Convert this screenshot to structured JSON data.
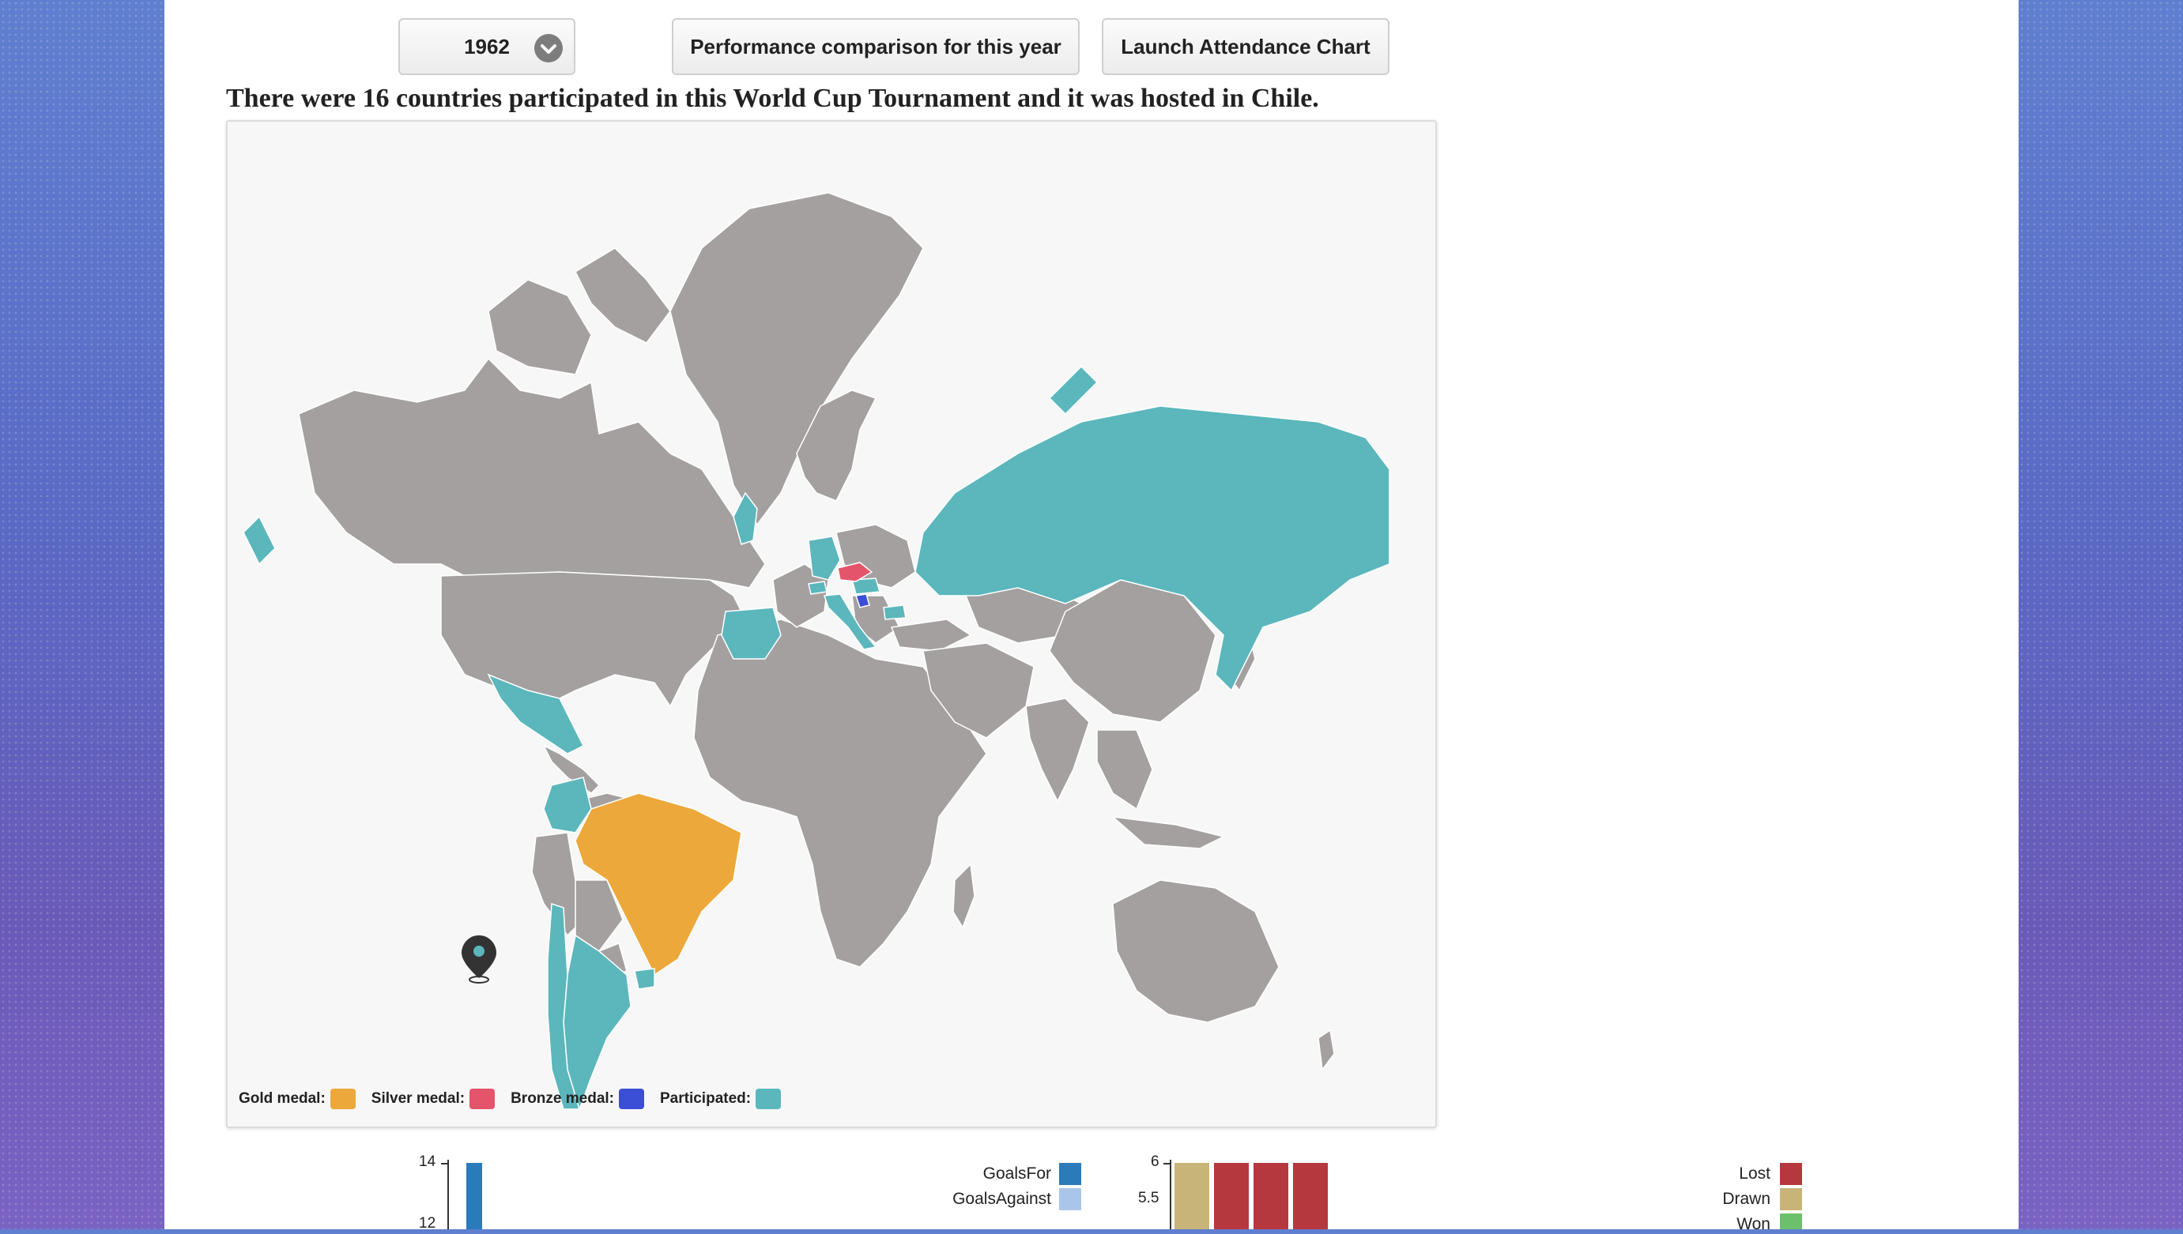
{
  "toolbar": {
    "year_value": "1962",
    "compare_label": "Performance comparison for this year",
    "attendance_label": "Launch Attendance Chart"
  },
  "headline": "There were 16 countries participated in this World Cup Tournament and it was hosted in Chile.",
  "map": {
    "colors": {
      "land": "#a3a09f",
      "gold": "#eca83a",
      "silver": "#e4546a",
      "bronze": "#3b4fd6",
      "participated": "#5bb7bc",
      "marker": "#333333"
    },
    "legend": [
      {
        "label": "Gold medal:",
        "color": "#eca83a"
      },
      {
        "label": "Silver medal:",
        "color": "#e4546a"
      },
      {
        "label": "Bronze medal:",
        "color": "#3b4fd6"
      },
      {
        "label": "Participated:",
        "color": "#5bb7bc"
      }
    ]
  },
  "goals_chart": {
    "y_ticks": [
      "14",
      "12"
    ],
    "legend": [
      {
        "label": "GoalsFor",
        "color": "#2b7bba"
      },
      {
        "label": "GoalsAgainst",
        "color": "#a9c6e8"
      }
    ]
  },
  "results_chart": {
    "y_ticks": [
      "6",
      "5.5"
    ],
    "legend": [
      {
        "label": "Lost",
        "color": "#b5383f"
      },
      {
        "label": "Drawn",
        "color": "#c8b479"
      },
      {
        "label": "Won",
        "color": "#6cc06c"
      }
    ]
  }
}
